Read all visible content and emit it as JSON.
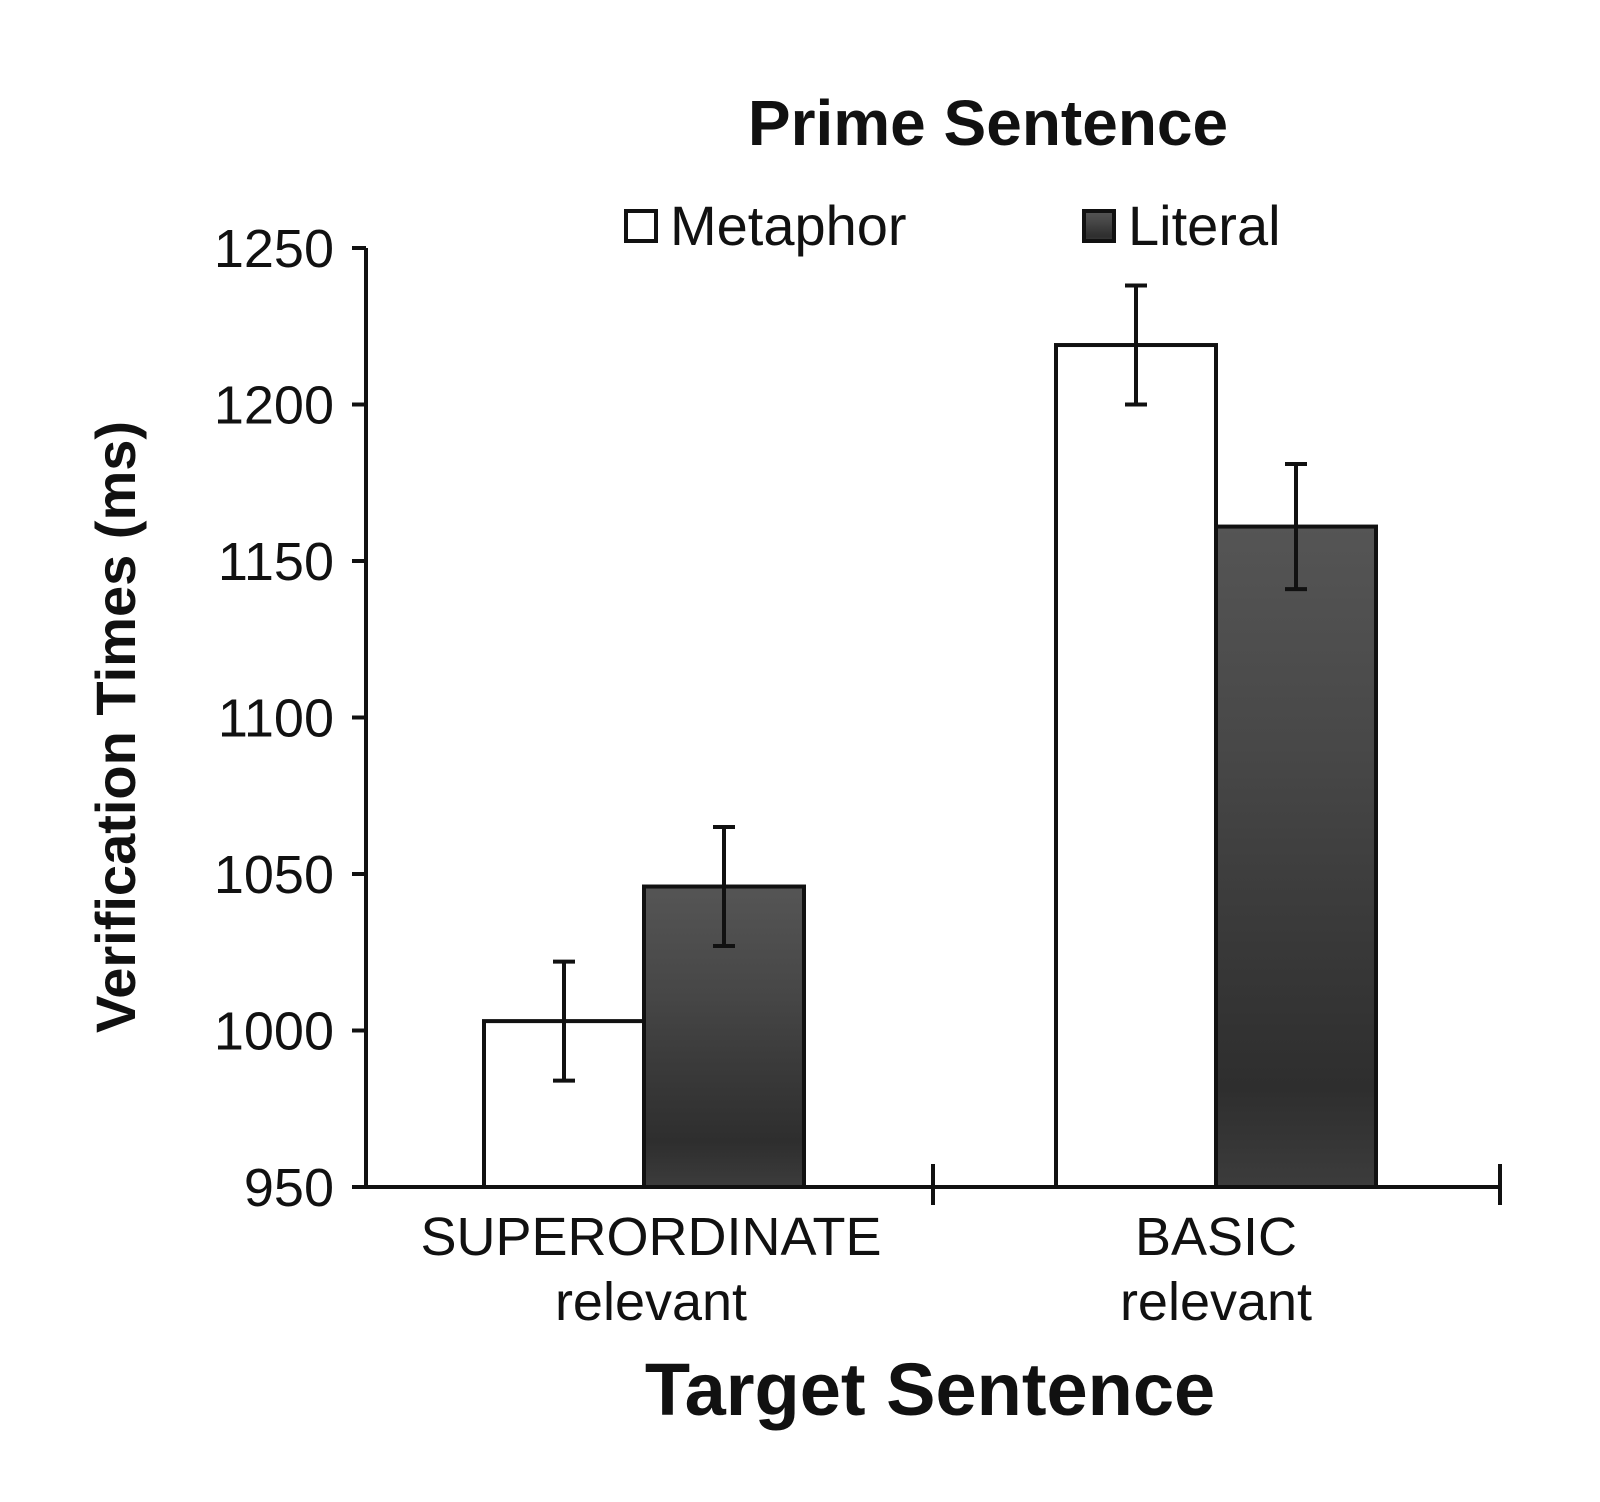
{
  "chart_data": {
    "type": "bar",
    "title": "Prime Sentence",
    "xlabel": "Target Sentence",
    "ylabel": "Verification Times (ms)",
    "ylim": [
      950,
      1250
    ],
    "yticks": [
      950,
      1000,
      1050,
      1100,
      1150,
      1200,
      1250
    ],
    "categories": [
      {
        "line1": "SUPERORDINATE",
        "line2": "relevant"
      },
      {
        "line1": "BASIC",
        "line2": "relevant"
      }
    ],
    "series": [
      {
        "name": "Metaphor",
        "color": "#ffffff",
        "values": [
          1003,
          1219
        ],
        "errors": [
          19,
          19
        ]
      },
      {
        "name": "Literal",
        "color": "#4a4a4a",
        "values": [
          1046,
          1161
        ],
        "errors": [
          19,
          20
        ]
      }
    ],
    "legend_position": "top",
    "grid": false
  }
}
